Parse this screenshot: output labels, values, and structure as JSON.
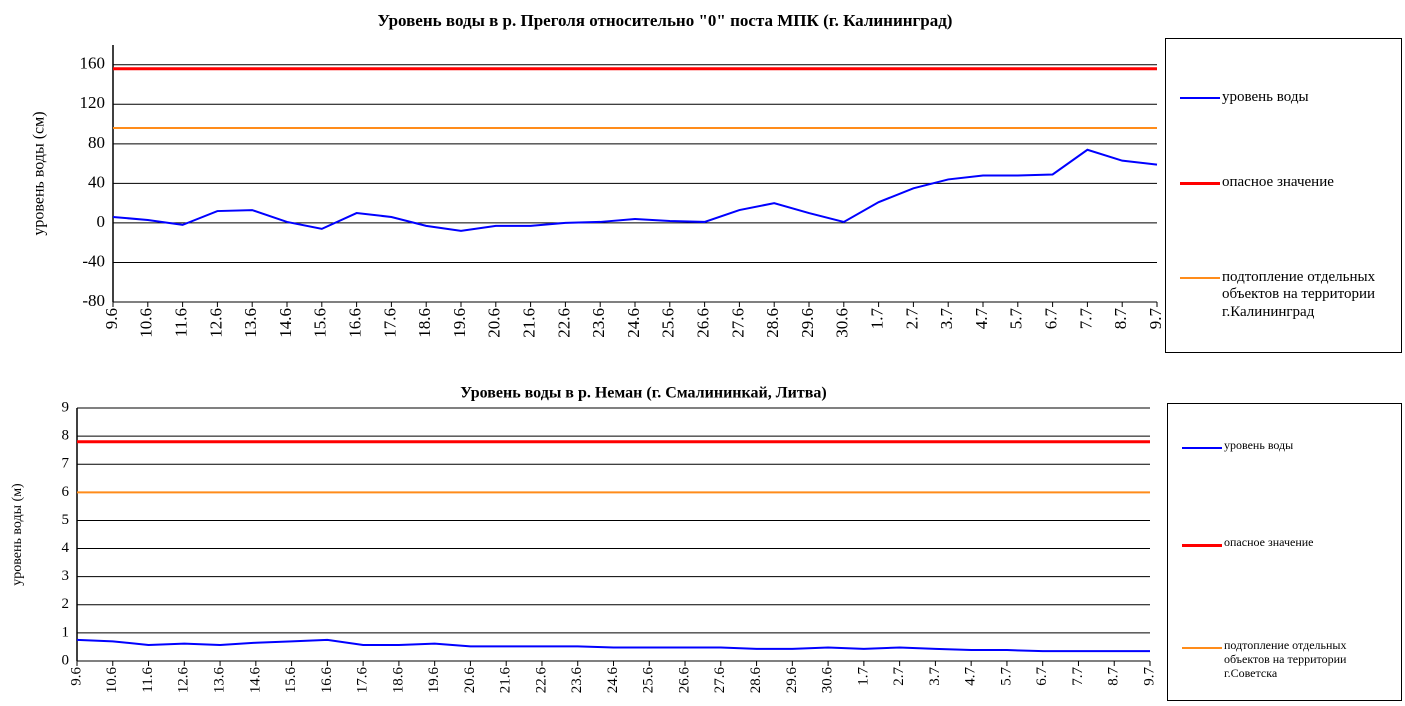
{
  "chart_data": [
    {
      "type": "line",
      "title": "Уровень воды в р. Преголя относительно \"0\" поста МПК (г. Калининград)",
      "y_label": "уровень воды (см)",
      "categories": [
        "9.6",
        "10.6",
        "11.6",
        "12.6",
        "13.6",
        "14.6",
        "15.6",
        "16.6",
        "17.6",
        "18.6",
        "19.6",
        "20.6",
        "21.6",
        "22.6",
        "23.6",
        "24.6",
        "25.6",
        "26.6",
        "27.6",
        "28.6",
        "29.6",
        "30.6",
        "1.7",
        "2.7",
        "3.7",
        "4.7",
        "5.7",
        "6.7",
        "7.7",
        "8.7",
        "9.7"
      ],
      "series": [
        {
          "name": "уровень воды",
          "color": "#0000ff",
          "line_width": 2,
          "values": [
            6,
            3,
            -2,
            12,
            13,
            1,
            -6,
            10,
            6,
            -3,
            -8,
            -3,
            -3,
            0,
            1,
            4,
            2,
            1,
            13,
            20,
            10,
            1,
            21,
            35,
            44,
            48,
            48,
            49,
            74,
            63,
            59
          ]
        },
        {
          "name": "опасное значение",
          "color": "#ff0000",
          "line_width": 3,
          "values": [
            156,
            156,
            156,
            156,
            156,
            156,
            156,
            156,
            156,
            156,
            156,
            156,
            156,
            156,
            156,
            156,
            156,
            156,
            156,
            156,
            156,
            156,
            156,
            156,
            156,
            156,
            156,
            156,
            156,
            156,
            156
          ]
        },
        {
          "name": "подтопление отдельных объектов на территории г.Калининград",
          "color": "#ff8c1a",
          "line_width": 2,
          "values": [
            96,
            96,
            96,
            96,
            96,
            96,
            96,
            96,
            96,
            96,
            96,
            96,
            96,
            96,
            96,
            96,
            96,
            96,
            96,
            96,
            96,
            96,
            96,
            96,
            96,
            96,
            96,
            96,
            96,
            96,
            96
          ]
        }
      ],
      "ylim": [
        -80,
        180
      ],
      "yticks": [
        -80,
        -40,
        0,
        40,
        80,
        120,
        160
      ],
      "grid": true,
      "legend": "right"
    },
    {
      "type": "line",
      "title": "Уровень воды в р. Неман (г. Смалининкай, Литва)",
      "y_label": "уровень воды (м)",
      "categories": [
        "9.6",
        "10.6",
        "11.6",
        "12.6",
        "13.6",
        "14.6",
        "15.6",
        "16.6",
        "17.6",
        "18.6",
        "19.6",
        "20.6",
        "21.6",
        "22.6",
        "23.6",
        "24.6",
        "25.6",
        "26.6",
        "27.6",
        "28.6",
        "29.6",
        "30.6",
        "1.7",
        "2.7",
        "3.7",
        "4.7",
        "5.7",
        "6.7",
        "7.7",
        "8.7",
        "9.7"
      ],
      "series": [
        {
          "name": "уровень воды",
          "color": "#0000ff",
          "line_width": 2,
          "values": [
            0.75,
            0.7,
            0.57,
            0.62,
            0.57,
            0.65,
            0.7,
            0.75,
            0.57,
            0.57,
            0.62,
            0.52,
            0.52,
            0.52,
            0.52,
            0.48,
            0.48,
            0.48,
            0.48,
            0.43,
            0.43,
            0.48,
            0.43,
            0.48,
            0.43,
            0.39,
            0.39,
            0.35,
            0.35,
            0.35,
            0.35
          ]
        },
        {
          "name": "опасное значение",
          "color": "#ff0000",
          "line_width": 3,
          "values": [
            7.8,
            7.8,
            7.8,
            7.8,
            7.8,
            7.8,
            7.8,
            7.8,
            7.8,
            7.8,
            7.8,
            7.8,
            7.8,
            7.8,
            7.8,
            7.8,
            7.8,
            7.8,
            7.8,
            7.8,
            7.8,
            7.8,
            7.8,
            7.8,
            7.8,
            7.8,
            7.8,
            7.8,
            7.8,
            7.8,
            7.8
          ]
        },
        {
          "name": "подтопление отдельных объектов на территории г.Советска",
          "color": "#ff8c1a",
          "line_width": 2,
          "values": [
            6,
            6,
            6,
            6,
            6,
            6,
            6,
            6,
            6,
            6,
            6,
            6,
            6,
            6,
            6,
            6,
            6,
            6,
            6,
            6,
            6,
            6,
            6,
            6,
            6,
            6,
            6,
            6,
            6,
            6,
            6
          ]
        }
      ],
      "ylim": [
        0,
        9
      ],
      "yticks": [
        0,
        1,
        2,
        3,
        4,
        5,
        6,
        7,
        8,
        9
      ],
      "grid": true,
      "legend": "right"
    }
  ]
}
